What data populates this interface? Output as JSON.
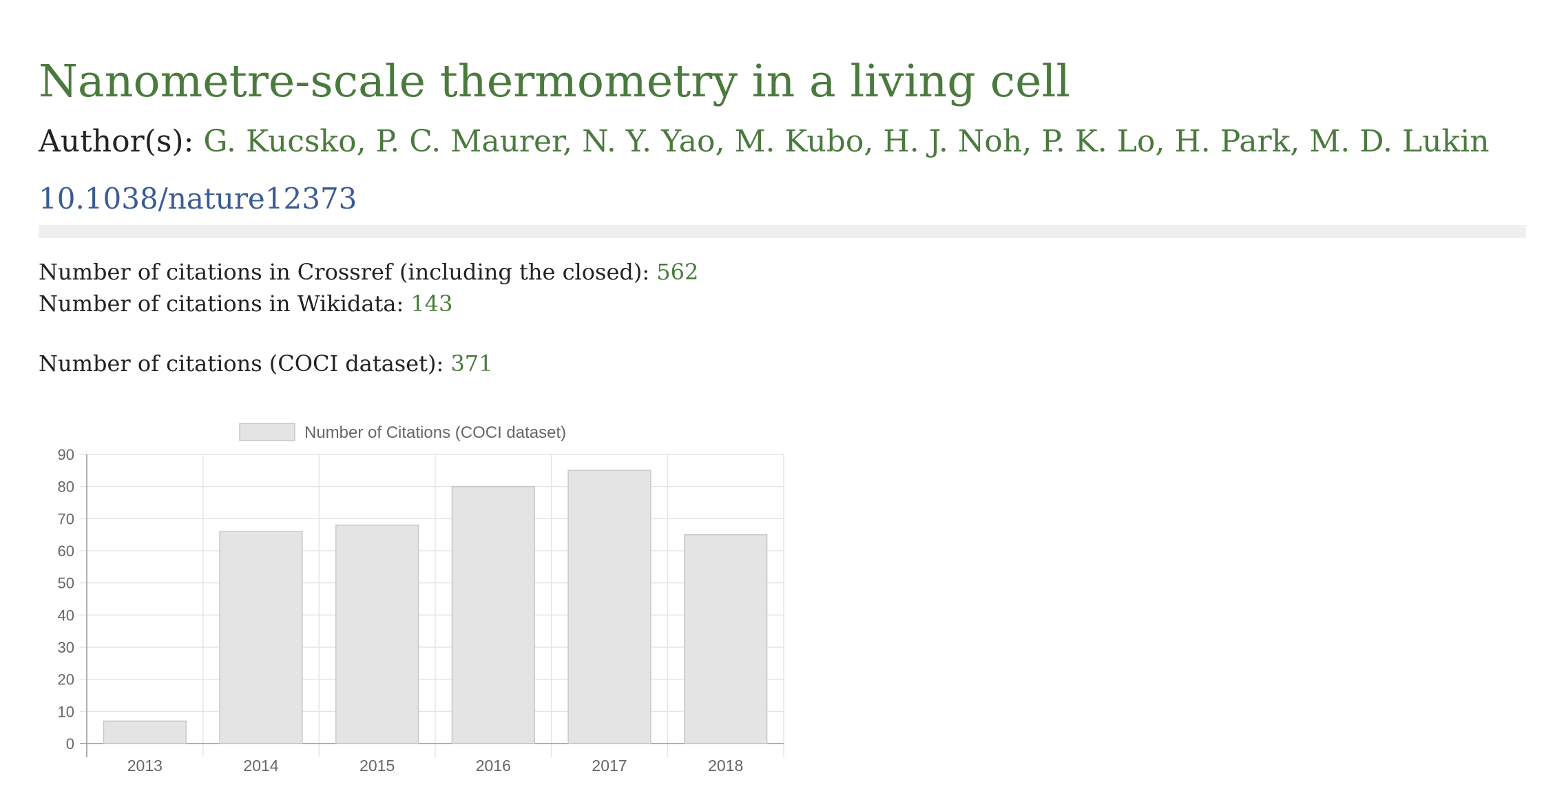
{
  "paper": {
    "title": "Nanometre-scale thermometry in a living cell",
    "authors_label": "Author(s):",
    "authors": "G. Kucsko, P. C. Maurer, N. Y. Yao, M. Kubo, H. J. Noh, P. K. Lo, H. Park, M. D. Lukin",
    "doi": "10.1038/nature12373"
  },
  "stats": {
    "crossref_label": "Number of citations in Crossref (including the closed):",
    "crossref_value": "562",
    "wikidata_label": "Number of citations in Wikidata:",
    "wikidata_value": "143",
    "coci_label": "Number of citations (COCI dataset):",
    "coci_value": "371"
  },
  "colors": {
    "title": "#4a7a3d",
    "link": "#3b5b93",
    "bar_fill": "#e4e4e4",
    "bar_stroke": "#c8c8c8",
    "grid": "#e5e5e5"
  },
  "chart_data": {
    "type": "bar",
    "categories": [
      "2013",
      "2014",
      "2015",
      "2016",
      "2017",
      "2018"
    ],
    "series": [
      {
        "name": "Number of Citations (COCI dataset)",
        "values": [
          7,
          66,
          68,
          80,
          85,
          65
        ]
      }
    ],
    "ylim": [
      0,
      90
    ],
    "yticks": [
      0,
      10,
      20,
      30,
      40,
      50,
      60,
      70,
      80,
      90
    ],
    "grid": true,
    "legend_position": "top"
  }
}
